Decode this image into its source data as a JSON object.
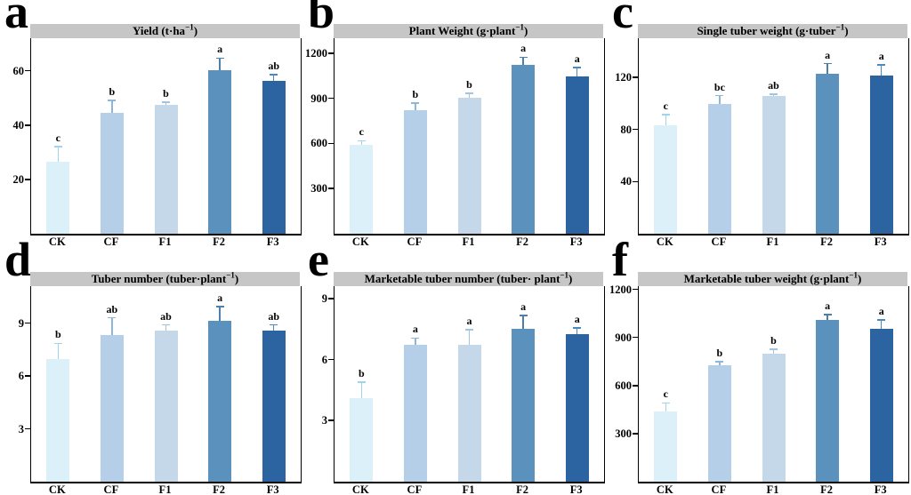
{
  "figure": {
    "description": "Six-panel bar chart figure comparing fertilizer treatments",
    "panel_letters": [
      "a",
      "b",
      "c",
      "d",
      "e",
      "f"
    ]
  },
  "categories": [
    "CK",
    "CF",
    "F1",
    "F2",
    "F3"
  ],
  "style": {
    "bar_colors": [
      "#dcf0fa",
      "#b4cfe7",
      "#c4d8ea",
      "#5b92bd",
      "#2b64a0"
    ],
    "error_colors": [
      "#9fd4ec",
      "#8cb6da",
      "#a3c4e0",
      "#4a80ab",
      "#4a8ac4"
    ],
    "strip_bg": "#c6c6c6",
    "axis_color": "#000000",
    "letter_color": "#000000"
  },
  "chart_data": [
    {
      "panel": "a",
      "type": "bar",
      "title_pre": "Yield (t·ha",
      "title_sup": "−1",
      "title_post": ")",
      "categories": [
        "CK",
        "CF",
        "F1",
        "F2",
        "F3"
      ],
      "values": [
        26.6,
        44.5,
        47.5,
        60.2,
        56.3
      ],
      "errors": [
        5.5,
        4.5,
        1.0,
        4.5,
        2.2
      ],
      "sig_letters": [
        "c",
        "b",
        "b",
        "a",
        "ab"
      ],
      "yticks": [
        20,
        40,
        60
      ],
      "ylim": [
        0,
        72
      ],
      "legend": "none",
      "grid": false
    },
    {
      "panel": "b",
      "type": "bar",
      "title_pre": "Plant Weight (g·plant",
      "title_sup": "−1",
      "title_post": ")",
      "categories": [
        "CK",
        "CF",
        "F1",
        "F2",
        "F3"
      ],
      "values": [
        588,
        822,
        905,
        1122,
        1047
      ],
      "errors": [
        30,
        48,
        30,
        52,
        58
      ],
      "sig_letters": [
        "c",
        "b",
        "b",
        "a",
        "a"
      ],
      "yticks": [
        300,
        600,
        900,
        1200
      ],
      "ylim": [
        0,
        1300
      ],
      "legend": "none",
      "grid": false
    },
    {
      "panel": "c",
      "type": "bar",
      "title_pre": "Single tuber weight (g·tuber",
      "title_sup": "−1",
      "title_post": ")",
      "categories": [
        "CK",
        "CF",
        "F1",
        "F2",
        "F3"
      ],
      "values": [
        83,
        99.5,
        105.5,
        122.5,
        121.5
      ],
      "errors": [
        8.5,
        6.5,
        1.5,
        8,
        8
      ],
      "sig_letters": [
        "c",
        "bc",
        "ab",
        "a",
        "a"
      ],
      "yticks": [
        40,
        80,
        120
      ],
      "ylim": [
        0,
        150
      ],
      "legend": "none",
      "grid": false
    },
    {
      "panel": "d",
      "type": "bar",
      "title_pre": "Tuber number (tuber·plant",
      "title_sup": "−1",
      "title_post": ")",
      "categories": [
        "CK",
        "CF",
        "F1",
        "F2",
        "F3"
      ],
      "values": [
        6.95,
        8.3,
        8.6,
        9.15,
        8.6
      ],
      "errors": [
        0.9,
        1.0,
        0.3,
        0.8,
        0.3
      ],
      "sig_letters": [
        "b",
        "ab",
        "ab",
        "a",
        "ab"
      ],
      "yticks": [
        3,
        6,
        9
      ],
      "ylim": [
        0,
        11.1
      ],
      "legend": "none",
      "grid": false
    },
    {
      "panel": "e",
      "type": "bar",
      "title_pre": "Marketable tuber number (tuber· plant",
      "title_sup": "−1",
      "title_post": ")",
      "categories": [
        "CK",
        "CF",
        "F1",
        "F2",
        "F3"
      ],
      "values": [
        4.1,
        6.7,
        6.7,
        7.5,
        7.25
      ],
      "errors": [
        0.8,
        0.35,
        0.75,
        0.65,
        0.3
      ],
      "sig_letters": [
        "b",
        "a",
        "a",
        "a",
        "a"
      ],
      "yticks": [
        3,
        6,
        9
      ],
      "ylim": [
        0,
        9.6
      ],
      "legend": "none",
      "grid": false
    },
    {
      "panel": "f",
      "type": "bar",
      "title_pre": "Marketable tuber weight (g·plant",
      "title_sup": "−1",
      "title_post": ")",
      "categories": [
        "CK",
        "CF",
        "F1",
        "F2",
        "F3"
      ],
      "values": [
        436,
        725,
        798,
        1010,
        952
      ],
      "errors": [
        55,
        25,
        27,
        33,
        58
      ],
      "sig_letters": [
        "c",
        "b",
        "b",
        "a",
        "a"
      ],
      "yticks": [
        300,
        600,
        900,
        1200
      ],
      "ylim": [
        0,
        1220
      ],
      "legend": "none",
      "grid": false
    }
  ]
}
